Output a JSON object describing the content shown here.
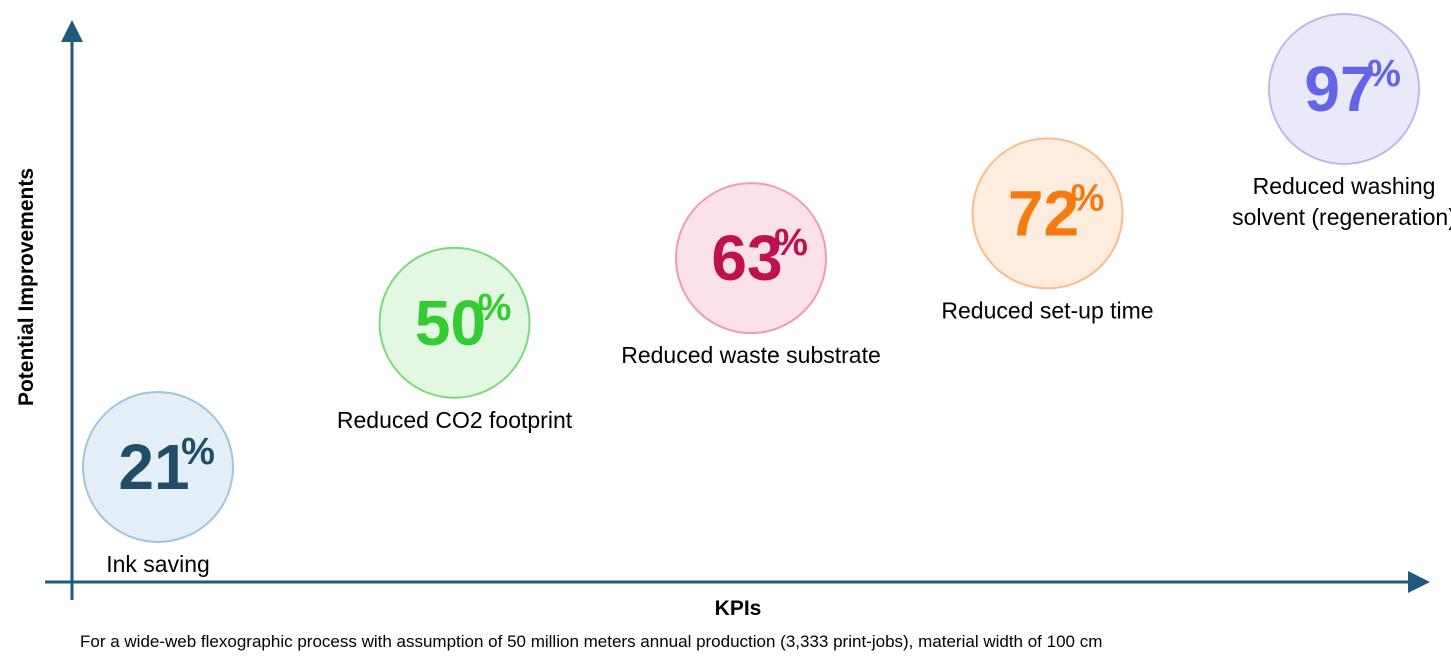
{
  "chart_data": {
    "type": "scatter",
    "xlabel": "KPIs",
    "ylabel": "Potential Improvements",
    "footnote": "For a wide-web flexographic process with assumption of 50 million meters annual production (3,333 print-jobs), material width of 100 cm",
    "percent_sign": "%",
    "categories": [
      "Ink saving",
      "Reduced CO2 footprint",
      "Reduced waste substrate",
      "Reduced set-up time",
      "Reduced washing solvent (regeneration)"
    ],
    "values": [
      21,
      50,
      63,
      72,
      97
    ],
    "grid": false,
    "legend": "none",
    "points": [
      {
        "category": "Ink saving",
        "value": 21,
        "value_text": "21",
        "label_lines": [
          "Ink saving"
        ],
        "label_position": "below",
        "text_color": "#1f4e66",
        "fill": "#e4eef6",
        "stroke": "#9ec5df"
      },
      {
        "category": "Reduced CO2 footprint",
        "value": 50,
        "value_text": "50",
        "label_lines": [
          "Reduced CO2 footprint"
        ],
        "label_position": "below",
        "text_color": "#33cc33",
        "fill": "#e3f7e3",
        "stroke": "#7cd97c"
      },
      {
        "category": "Reduced waste substrate",
        "value": 63,
        "value_text": "63",
        "label_lines": [
          "Reduced waste substrate"
        ],
        "label_position": "below",
        "text_color": "#c0114f",
        "fill": "#fbe1ea",
        "stroke": "#ef9ab7"
      },
      {
        "category": "Reduced set-up time",
        "value": 72,
        "value_text": "72",
        "label_lines": [
          "Reduced set-up time"
        ],
        "label_position": "below",
        "text_color": "#f57a10",
        "fill": "#feeddf",
        "stroke": "#f9bd8c"
      },
      {
        "category": "Reduced washing solvent (regeneration)",
        "value": 97,
        "value_text": "97",
        "label_lines": [
          "Reduced washing",
          "solvent (regeneration)"
        ],
        "label_position": "below",
        "text_color": "#6464e6",
        "fill": "#e9e9fa",
        "stroke": "#b9b9ee"
      }
    ]
  },
  "colors": {
    "axis": "#1f5a7a",
    "label_text": "#000000"
  }
}
